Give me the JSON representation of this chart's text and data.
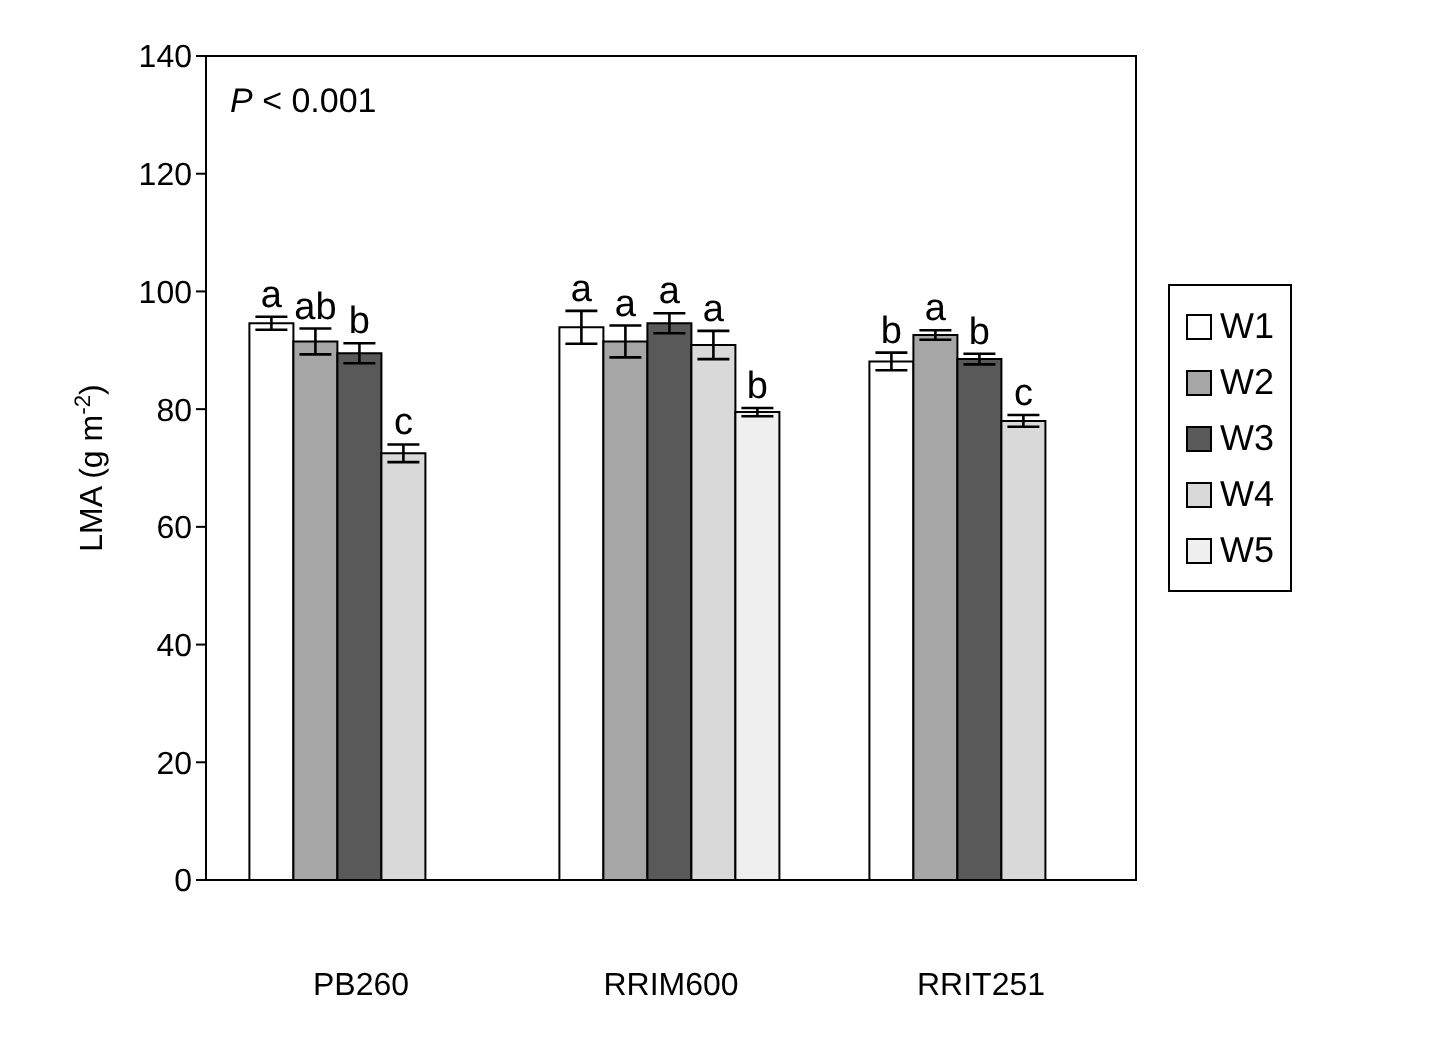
{
  "chart_data": {
    "type": "bar",
    "ylabel": "LMA (g m$^{-2}$)",
    "categories": [
      "PB260",
      "RRIM600",
      "RRIT251"
    ],
    "series": [
      {
        "name": "W1",
        "color": "#ffffff",
        "values": [
          94.6,
          93.9,
          88.1
        ],
        "errors": [
          1.1,
          2.8,
          1.5
        ],
        "value_labels": [
          "a",
          "a",
          "b"
        ]
      },
      {
        "name": "W2",
        "color": "#a6a6a6",
        "values": [
          91.5,
          91.5,
          92.6
        ],
        "errors": [
          2.2,
          2.7,
          0.8
        ],
        "value_labels": [
          "ab",
          "a",
          "a"
        ]
      },
      {
        "name": "W3",
        "color": "#595959",
        "values": [
          89.5,
          94.6,
          88.5
        ],
        "errors": [
          1.7,
          1.7,
          0.9
        ],
        "value_labels": [
          "b",
          "a",
          "b"
        ]
      },
      {
        "name": "W4",
        "color": "#d9d9d9",
        "values": [
          72.5,
          90.9,
          78
        ],
        "errors": [
          1.5,
          2.4,
          1
        ],
        "value_labels": [
          "c",
          "a",
          "c"
        ]
      },
      {
        "name": "W5",
        "color": "#efefef",
        "values": [
          null,
          79.5,
          null
        ],
        "errors": [
          null,
          0.7,
          null
        ],
        "value_labels": [
          null,
          "b",
          null
        ]
      }
    ],
    "ylim": [
      0,
      140
    ],
    "yticks": [
      0,
      20,
      40,
      60,
      80,
      100,
      120,
      140
    ],
    "grid": false,
    "legend": "right",
    "annotations": [
      "$^{}$P < 0.001"
    ]
  }
}
